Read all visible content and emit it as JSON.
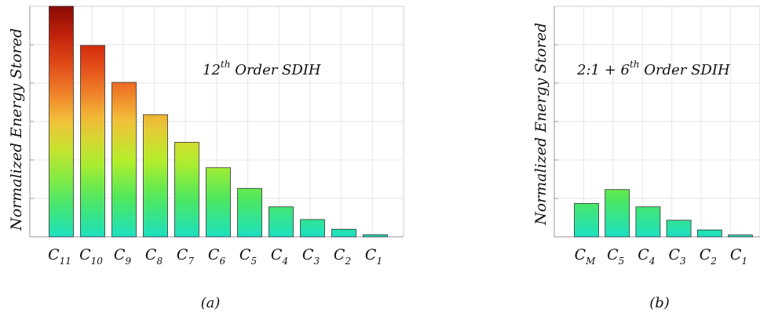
{
  "chart_data": [
    {
      "type": "bar",
      "panel_label": "(a)",
      "annotation": {
        "base": "12",
        "sup": "th",
        "rest": " Order SDIH"
      },
      "ylabel": "Normalized Energy Stored",
      "ylim": [
        0,
        1
      ],
      "grid": true,
      "categories": [
        {
          "base": "C",
          "sub": "11"
        },
        {
          "base": "C",
          "sub": "10"
        },
        {
          "base": "C",
          "sub": "9"
        },
        {
          "base": "C",
          "sub": "8"
        },
        {
          "base": "C",
          "sub": "7"
        },
        {
          "base": "C",
          "sub": "6"
        },
        {
          "base": "C",
          "sub": "5"
        },
        {
          "base": "C",
          "sub": "4"
        },
        {
          "base": "C",
          "sub": "3"
        },
        {
          "base": "C",
          "sub": "2"
        },
        {
          "base": "C",
          "sub": "1"
        }
      ],
      "values": [
        1.0,
        0.83,
        0.67,
        0.53,
        0.41,
        0.3,
        0.21,
        0.13,
        0.075,
        0.033,
        0.009
      ],
      "colormap": "jet (value-dependent vertical gradient)"
    },
    {
      "type": "bar",
      "panel_label": "(b)",
      "annotation": {
        "pre": "2:1 + 6",
        "sup": "th",
        "rest": " Order SDIH"
      },
      "ylabel": "Normalized Energy Stored",
      "ylim": [
        0,
        1
      ],
      "grid": true,
      "categories": [
        {
          "base": "C",
          "sub": "M"
        },
        {
          "base": "C",
          "sub": "5"
        },
        {
          "base": "C",
          "sub": "4"
        },
        {
          "base": "C",
          "sub": "3"
        },
        {
          "base": "C",
          "sub": "2"
        },
        {
          "base": "C",
          "sub": "1"
        }
      ],
      "values": [
        0.145,
        0.205,
        0.13,
        0.072,
        0.03,
        0.008
      ],
      "colormap": "jet (value-dependent vertical gradient)"
    }
  ],
  "colors": {
    "grid": "#e6e6e6",
    "axis": "#9a9a9a",
    "bar_stroke": "#333333",
    "stops": [
      "#1de0c1",
      "#4de85c",
      "#b6ee2a",
      "#f2c23a",
      "#ee6a23",
      "#d22a0c",
      "#8a0a05"
    ]
  }
}
